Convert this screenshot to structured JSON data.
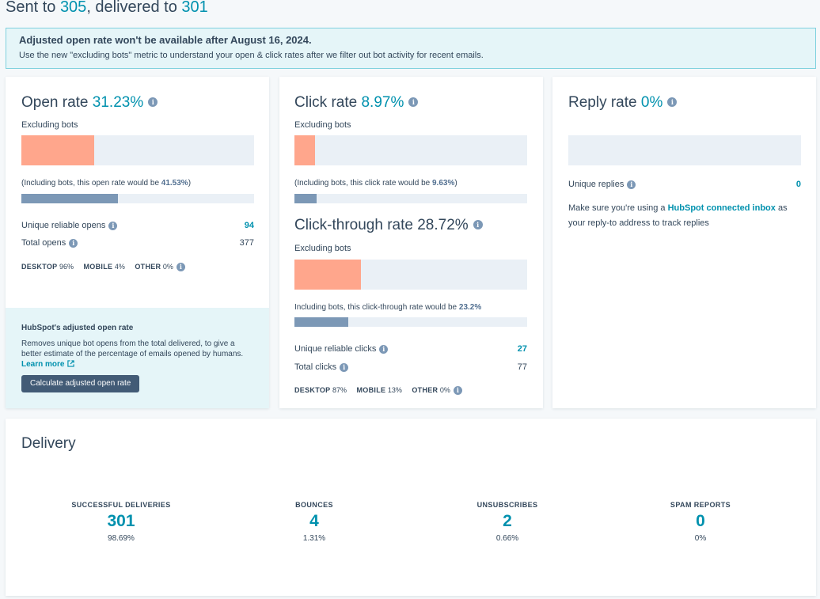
{
  "header": {
    "sent_prefix": "Sent to ",
    "sent_count": "305",
    "delivered_prefix": ", delivered to ",
    "delivered_count": "301"
  },
  "alert": {
    "title": "Adjusted open rate won't be available after August 16, 2024.",
    "body": "Use the new \"excluding bots\" metric to understand your open & click rates after we filter out bot activity for recent emails."
  },
  "open_rate": {
    "title": "Open rate",
    "value": "31.23%",
    "excluding_label": "Excluding bots",
    "excluding_fraction": 0.3123,
    "including_note_prefix": "(Including bots, this open rate would be ",
    "including_value": "41.53%",
    "including_note_suffix": ")",
    "including_fraction": 0.4153,
    "unique_label": "Unique reliable opens",
    "unique_value": "94",
    "total_label": "Total opens",
    "total_value": "377",
    "devices": {
      "desktop_label": "DESKTOP",
      "desktop_value": "96%",
      "mobile_label": "MOBILE",
      "mobile_value": "4%",
      "other_label": "OTHER",
      "other_value": "0%"
    }
  },
  "adjusted": {
    "title": "HubSpot's adjusted open rate",
    "body": "Removes unique bot opens from the total delivered, to give a better estimate of the percentage of emails opened by humans.",
    "learn_more": "Learn more",
    "button": "Calculate adjusted open rate"
  },
  "click_rate": {
    "title": "Click rate",
    "value": "8.97%",
    "excluding_label": "Excluding bots",
    "excluding_fraction": 0.0897,
    "including_note_prefix": "(Including bots, this click rate would be ",
    "including_value": "9.63%",
    "including_note_suffix": ")",
    "including_fraction": 0.0963
  },
  "ctr": {
    "title": "Click-through rate",
    "value": "28.72%",
    "excluding_label": "Excluding bots",
    "excluding_fraction": 0.2872,
    "including_note_prefix": "Including bots, this click-through rate would be ",
    "including_value": "23.2%",
    "including_fraction": 0.232,
    "unique_label": "Unique reliable clicks",
    "unique_value": "27",
    "total_label": "Total clicks",
    "total_value": "77",
    "devices": {
      "desktop_label": "DESKTOP",
      "desktop_value": "87%",
      "mobile_label": "MOBILE",
      "mobile_value": "13%",
      "other_label": "OTHER",
      "other_value": "0%"
    }
  },
  "reply_rate": {
    "title": "Reply rate",
    "value": "0%",
    "fraction": 0,
    "unique_label": "Unique replies",
    "unique_value": "0",
    "note_prefix": "Make sure you're using a ",
    "note_link": "HubSpot connected inbox",
    "note_suffix": " as your reply-to address to track replies"
  },
  "delivery": {
    "title": "Delivery",
    "stats": [
      {
        "label": "SUCCESSFUL DELIVERIES",
        "value": "301",
        "pct": "98.69%"
      },
      {
        "label": "BOUNCES",
        "value": "4",
        "pct": "1.31%"
      },
      {
        "label": "UNSUBSCRIBES",
        "value": "2",
        "pct": "0.66%"
      },
      {
        "label": "SPAM REPORTS",
        "value": "0",
        "pct": "0%"
      }
    ]
  },
  "colors": {
    "accent": "#0091ae",
    "bar_fill": "#ffa68c",
    "bar_track": "#eaf0f6",
    "including_fill": "#7c98b6"
  },
  "icons": {
    "info": "info-icon",
    "external_link": "external-link-icon"
  }
}
